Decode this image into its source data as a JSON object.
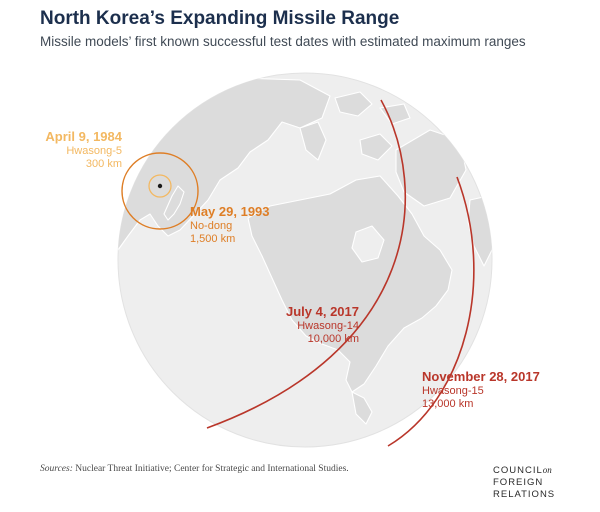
{
  "header": {
    "title": "North Korea’s Expanding Missile Range",
    "subtitle": "Missile models’ first known successful test dates with estimated maximum ranges"
  },
  "missiles": [
    {
      "date": "April 9, 1984",
      "model": "Hwasong-5",
      "range": "300 km",
      "range_km": 300,
      "color": "#f3b861"
    },
    {
      "date": "May 29, 1993",
      "model": "No-dong",
      "range": "1,500 km",
      "range_km": 1500,
      "color": "#de7e26"
    },
    {
      "date": "July 4, 2017",
      "model": "Hwasong-14",
      "range": "10,000 km",
      "range_km": 10000,
      "color": "#b9362a"
    },
    {
      "date": "November 28, 2017",
      "model": "Hwasong-15",
      "range": "13,000 km",
      "range_km": 13000,
      "color": "#b9362a"
    }
  ],
  "footer": {
    "sources_label": "Sources:",
    "sources_text": "Nuclear Threat Initiative; Center for Strategic and International Studies."
  },
  "logo": {
    "line1": "COUNCIL",
    "line1_suffix": "on",
    "line2": "FOREIGN",
    "line3": "RELATIONS"
  },
  "colors": {
    "ocean": "#eeeeee",
    "land": "#dcdcdc",
    "coast": "#ffffff",
    "title": "#1c2f4d"
  }
}
